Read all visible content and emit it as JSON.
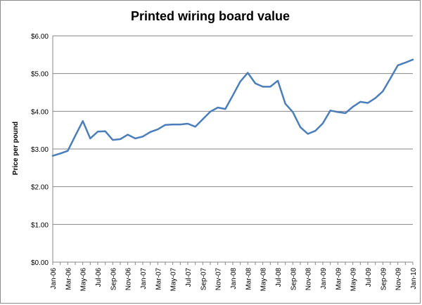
{
  "chart_data": {
    "type": "line",
    "title": "Printed wiring board value",
    "xlabel": "",
    "ylabel": "Price per pound",
    "ylim": [
      0,
      6
    ],
    "yticks": [
      "$0.00",
      "$1.00",
      "$2.00",
      "$3.00",
      "$4.00",
      "$5.00",
      "$6.00"
    ],
    "xtick_labels": [
      "Jan-06",
      "Mar-06",
      "May-06",
      "Jul-06",
      "Sep-06",
      "Nov-06",
      "Jan-07",
      "Mar-07",
      "May-07",
      "Jul-07",
      "Sep-07",
      "Nov-07",
      "Jan-08",
      "Mar-08",
      "May-08",
      "Jul-08",
      "Sep-08",
      "Nov-08",
      "Jan-09",
      "Mar-09",
      "May-09",
      "Jul-09",
      "Sep-09",
      "Nov-09",
      "Jan-10"
    ],
    "grid": true,
    "legend": "none",
    "series_color": "#4a7ebb",
    "x": [
      "Jan-06",
      "Feb-06",
      "Mar-06",
      "Apr-06",
      "May-06",
      "Jun-06",
      "Jul-06",
      "Aug-06",
      "Sep-06",
      "Oct-06",
      "Nov-06",
      "Dec-06",
      "Jan-07",
      "Feb-07",
      "Mar-07",
      "Apr-07",
      "May-07",
      "Jun-07",
      "Jul-07",
      "Aug-07",
      "Sep-07",
      "Oct-07",
      "Nov-07",
      "Dec-07",
      "Jan-08",
      "Feb-08",
      "Mar-08",
      "Apr-08",
      "May-08",
      "Jun-08",
      "Jul-08",
      "Aug-08",
      "Sep-08",
      "Oct-08",
      "Nov-08",
      "Dec-08",
      "Jan-09",
      "Feb-09",
      "Mar-09",
      "Apr-09",
      "May-09",
      "Jun-09",
      "Jul-09",
      "Aug-09",
      "Sep-09",
      "Oct-09",
      "Nov-09",
      "Dec-09",
      "Jan-10"
    ],
    "series": [
      {
        "values": [
          2.82,
          2.88,
          2.95,
          3.35,
          3.74,
          3.28,
          3.46,
          3.47,
          3.24,
          3.26,
          3.38,
          3.28,
          3.33,
          3.45,
          3.52,
          3.64,
          3.65,
          3.65,
          3.67,
          3.59,
          3.79,
          3.99,
          4.1,
          4.06,
          4.42,
          4.79,
          5.02,
          4.74,
          4.65,
          4.65,
          4.81,
          4.2,
          3.98,
          3.58,
          3.4,
          3.48,
          3.68,
          4.02,
          3.98,
          3.95,
          4.12,
          4.25,
          4.22,
          4.35,
          4.53,
          4.87,
          5.22,
          5.29,
          5.37
        ]
      }
    ]
  }
}
